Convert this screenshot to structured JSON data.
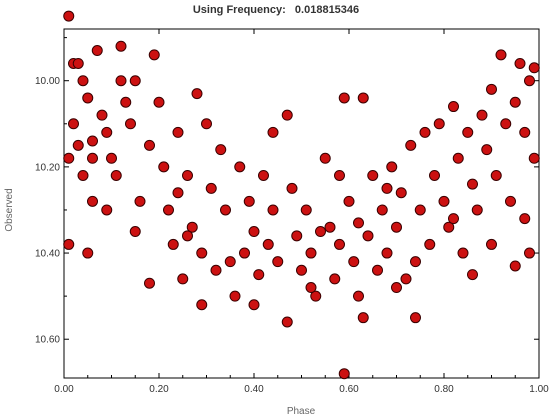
{
  "chart_data": {
    "type": "scatter",
    "title_prefix": "Using Frequency:",
    "title_value": "0.018815346",
    "xlabel": "Phase",
    "ylabel": "Observed",
    "xlim": [
      0.0,
      1.0
    ],
    "ylim": [
      9.88,
      10.69
    ],
    "y_inverted": true,
    "x_ticks": [
      "0.00",
      "0.20",
      "0.40",
      "0.60",
      "0.80",
      "1.00"
    ],
    "y_ticks": [
      "10.00",
      "10.20",
      "10.40",
      "10.60"
    ],
    "grid": false,
    "marker_fill": "#cc1111",
    "marker_edge": "#3a0000",
    "points": [
      [
        0.01,
        9.85
      ],
      [
        0.02,
        9.96
      ],
      [
        0.03,
        9.96
      ],
      [
        0.04,
        10.0
      ],
      [
        0.05,
        10.04
      ],
      [
        0.02,
        10.1
      ],
      [
        0.03,
        10.15
      ],
      [
        0.01,
        10.18
      ],
      [
        0.04,
        10.22
      ],
      [
        0.06,
        10.28
      ],
      [
        0.01,
        10.38
      ],
      [
        0.05,
        10.4
      ],
      [
        0.07,
        9.93
      ],
      [
        0.08,
        10.08
      ],
      [
        0.09,
        10.12
      ],
      [
        0.1,
        10.18
      ],
      [
        0.06,
        10.14
      ],
      [
        0.12,
        9.92
      ],
      [
        0.13,
        10.05
      ],
      [
        0.14,
        10.1
      ],
      [
        0.15,
        10.0
      ],
      [
        0.11,
        10.22
      ],
      [
        0.16,
        10.28
      ],
      [
        0.18,
        10.15
      ],
      [
        0.19,
        9.94
      ],
      [
        0.2,
        10.05
      ],
      [
        0.21,
        10.2
      ],
      [
        0.22,
        10.3
      ],
      [
        0.18,
        10.47
      ],
      [
        0.23,
        10.38
      ],
      [
        0.24,
        10.12
      ],
      [
        0.25,
        10.46
      ],
      [
        0.26,
        10.22
      ],
      [
        0.27,
        10.34
      ],
      [
        0.28,
        10.03
      ],
      [
        0.29,
        10.4
      ],
      [
        0.3,
        10.1
      ],
      [
        0.31,
        10.25
      ],
      [
        0.29,
        10.52
      ],
      [
        0.32,
        10.44
      ],
      [
        0.33,
        10.16
      ],
      [
        0.34,
        10.3
      ],
      [
        0.36,
        10.5
      ],
      [
        0.37,
        10.2
      ],
      [
        0.38,
        10.4
      ],
      [
        0.39,
        10.28
      ],
      [
        0.4,
        10.35
      ],
      [
        0.41,
        10.45
      ],
      [
        0.42,
        10.22
      ],
      [
        0.43,
        10.38
      ],
      [
        0.44,
        10.3
      ],
      [
        0.45,
        10.42
      ],
      [
        0.47,
        10.08
      ],
      [
        0.48,
        10.25
      ],
      [
        0.47,
        10.56
      ],
      [
        0.49,
        10.36
      ],
      [
        0.5,
        10.44
      ],
      [
        0.51,
        10.3
      ],
      [
        0.52,
        10.4
      ],
      [
        0.53,
        10.5
      ],
      [
        0.55,
        10.18
      ],
      [
        0.56,
        10.34
      ],
      [
        0.57,
        10.46
      ],
      [
        0.58,
        10.38
      ],
      [
        0.59,
        10.04
      ],
      [
        0.6,
        10.28
      ],
      [
        0.61,
        10.42
      ],
      [
        0.62,
        10.5
      ],
      [
        0.63,
        10.04
      ],
      [
        0.64,
        10.36
      ],
      [
        0.63,
        10.55
      ],
      [
        0.65,
        10.22
      ],
      [
        0.66,
        10.44
      ],
      [
        0.67,
        10.3
      ],
      [
        0.68,
        10.4
      ],
      [
        0.69,
        10.2
      ],
      [
        0.7,
        10.34
      ],
      [
        0.71,
        10.26
      ],
      [
        0.72,
        10.46
      ],
      [
        0.73,
        10.15
      ],
      [
        0.74,
        10.55
      ],
      [
        0.75,
        10.3
      ],
      [
        0.76,
        10.12
      ],
      [
        0.77,
        10.38
      ],
      [
        0.78,
        10.22
      ],
      [
        0.79,
        10.1
      ],
      [
        0.8,
        10.28
      ],
      [
        0.81,
        10.34
      ],
      [
        0.82,
        10.06
      ],
      [
        0.83,
        10.18
      ],
      [
        0.84,
        10.4
      ],
      [
        0.85,
        10.12
      ],
      [
        0.86,
        10.24
      ],
      [
        0.87,
        10.3
      ],
      [
        0.88,
        10.08
      ],
      [
        0.89,
        10.16
      ],
      [
        0.9,
        10.02
      ],
      [
        0.91,
        10.22
      ],
      [
        0.92,
        9.94
      ],
      [
        0.93,
        10.1
      ],
      [
        0.94,
        10.28
      ],
      [
        0.95,
        10.05
      ],
      [
        0.96,
        9.96
      ],
      [
        0.97,
        10.12
      ],
      [
        0.98,
        10.0
      ],
      [
        0.99,
        10.18
      ],
      [
        0.97,
        10.32
      ],
      [
        0.98,
        10.4
      ],
      [
        0.95,
        10.43
      ],
      [
        0.99,
        9.97
      ],
      [
        0.59,
        10.68
      ],
      [
        0.12,
        10.0
      ],
      [
        0.26,
        10.36
      ],
      [
        0.44,
        10.12
      ],
      [
        0.54,
        10.35
      ],
      [
        0.58,
        10.22
      ],
      [
        0.68,
        10.25
      ],
      [
        0.74,
        10.42
      ],
      [
        0.86,
        10.45
      ],
      [
        0.35,
        10.42
      ],
      [
        0.15,
        10.35
      ],
      [
        0.09,
        10.3
      ],
      [
        0.06,
        10.18
      ],
      [
        0.24,
        10.26
      ],
      [
        0.4,
        10.52
      ],
      [
        0.52,
        10.48
      ],
      [
        0.62,
        10.33
      ],
      [
        0.7,
        10.48
      ],
      [
        0.82,
        10.32
      ],
      [
        0.9,
        10.38
      ]
    ]
  }
}
